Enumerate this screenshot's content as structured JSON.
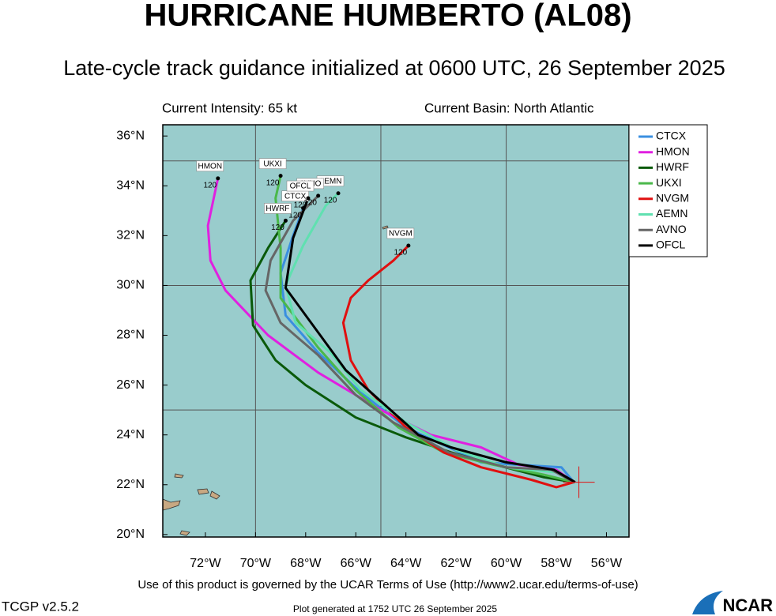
{
  "chart_data": {
    "type": "line",
    "title": "HURRICANE HUMBERTO (AL08)",
    "subtitle": "Late-cycle track guidance initialized at 0600 UTC, 26 September 2025",
    "intensity": "Current Intensity: 65 kt",
    "basin": "Current Basin: North Atlantic",
    "terms": "Use of this product is governed by the UCAR Terms of Use (http://www2.ucar.edu/terms-of-use)",
    "version": "TCGP v2.5.2",
    "generated": "Plot generated at 1752 UTC   26 September 2025",
    "logo": "NCAR",
    "xlim": [
      -73.7,
      -55.1
    ],
    "ylim": [
      19.9,
      36.45
    ],
    "xticks": [
      {
        "value": -72,
        "label": "72°W"
      },
      {
        "value": -70,
        "label": "70°W"
      },
      {
        "value": -68,
        "label": "68°W"
      },
      {
        "value": -66,
        "label": "66°W"
      },
      {
        "value": -64,
        "label": "64°W"
      },
      {
        "value": -62,
        "label": "62°W"
      },
      {
        "value": -60,
        "label": "60°W"
      },
      {
        "value": -58,
        "label": "58°W"
      },
      {
        "value": -56,
        "label": "56°W"
      }
    ],
    "yticks": [
      {
        "value": 20,
        "label": "20°N"
      },
      {
        "value": 22,
        "label": "22°N"
      },
      {
        "value": 24,
        "label": "24°N"
      },
      {
        "value": 26,
        "label": "26°N"
      },
      {
        "value": 28,
        "label": "28°N"
      },
      {
        "value": 30,
        "label": "30°N"
      },
      {
        "value": 32,
        "label": "32°N"
      },
      {
        "value": 34,
        "label": "34°N"
      },
      {
        "value": 36,
        "label": "36°N"
      }
    ],
    "xgrid": [
      -70,
      -65,
      -60
    ],
    "ygrid": [
      25,
      30,
      35
    ],
    "current_position": {
      "x": -57.1,
      "y": 22.1
    },
    "series": [
      {
        "name": "CTCX",
        "color": "#3a8fe0",
        "end_label": "120",
        "x": [
          -57.3,
          -57.8,
          -59.5,
          -61,
          -62.5,
          -64,
          -65.8,
          -67.5,
          -68.8,
          -69.0,
          -68.5,
          -68.1
        ],
        "values": [
          22.1,
          22.7,
          22.8,
          22.9,
          23.6,
          24.3,
          25.7,
          27.3,
          28.8,
          30.5,
          32.0,
          33.1
        ]
      },
      {
        "name": "HMON",
        "color": "#e020e0",
        "end_label": "120",
        "x": [
          -57.3,
          -58,
          -59.5,
          -61,
          -63,
          -65,
          -67.5,
          -69.5,
          -71.2,
          -71.8,
          -71.9,
          -71.5
        ],
        "values": [
          22.1,
          22.6,
          22.8,
          23.5,
          24.0,
          25.0,
          26.5,
          28.0,
          29.8,
          31.0,
          32.4,
          34.3
        ]
      },
      {
        "name": "HWRF",
        "color": "#0a5a0a",
        "end_label": "120",
        "x": [
          -57.3,
          -58.5,
          -60.8,
          -62.2,
          -64,
          -66,
          -68,
          -69.2,
          -70.1,
          -70.2,
          -69.5,
          -68.8
        ],
        "values": [
          22.1,
          22.3,
          22.9,
          23.3,
          23.9,
          24.7,
          26.0,
          27.0,
          28.4,
          30.2,
          31.5,
          32.6
        ]
      },
      {
        "name": "UKXI",
        "color": "#4ab84a",
        "end_label": "120",
        "x": [
          -57.3,
          -58.5,
          -60.5,
          -62.5,
          -64.3,
          -66,
          -67.5,
          -69.0,
          -69.0,
          -69.2,
          -69.0
        ],
        "values": [
          22.1,
          22.4,
          22.8,
          23.3,
          24.3,
          25.8,
          27.5,
          29.5,
          31.5,
          33.5,
          34.4
        ]
      },
      {
        "name": "NVGM",
        "color": "#e01010",
        "end_label": "120",
        "x": [
          -57.3,
          -58,
          -59,
          -61,
          -62.5,
          -64,
          -65.5,
          -66.2,
          -66.5,
          -66.2,
          -65.5,
          -64.5,
          -63.9
        ],
        "values": [
          22.1,
          21.9,
          22.2,
          22.7,
          23.3,
          24.3,
          25.8,
          27.0,
          28.5,
          29.5,
          30.2,
          31.0,
          31.6
        ]
      },
      {
        "name": "AEMN",
        "color": "#60e0b0",
        "end_label": "120",
        "x": [
          -57.3,
          -58,
          -60,
          -62,
          -64,
          -65.8,
          -67,
          -68.4,
          -68.8,
          -68.1,
          -67.2,
          -66.7
        ],
        "values": [
          22.1,
          22.5,
          22.7,
          23.4,
          24.5,
          25.8,
          27.3,
          28.5,
          30,
          31.6,
          33.2,
          33.7
        ]
      },
      {
        "name": "AVNO",
        "color": "#666666",
        "end_label": "120",
        "x": [
          -57.3,
          -58.2,
          -60,
          -62.3,
          -64.5,
          -66,
          -67.5,
          -69,
          -69.6,
          -69.4,
          -68.5,
          -67.5
        ],
        "values": [
          22.1,
          22.6,
          22.7,
          23.3,
          24.5,
          25.6,
          27.2,
          28.5,
          29.8,
          31.0,
          32.6,
          33.6
        ]
      },
      {
        "name": "OFCL",
        "color": "#000000",
        "end_label": "120",
        "x": [
          -57.25,
          -58.1,
          -60.0,
          -62.2,
          -63.5,
          -65.5,
          -66.4,
          -68.8,
          -68.5,
          -67.9
        ],
        "values": [
          22.1,
          22.6,
          22.9,
          23.5,
          24.0,
          25.8,
          26.6,
          29.9,
          31.9,
          33.5
        ]
      }
    ]
  }
}
